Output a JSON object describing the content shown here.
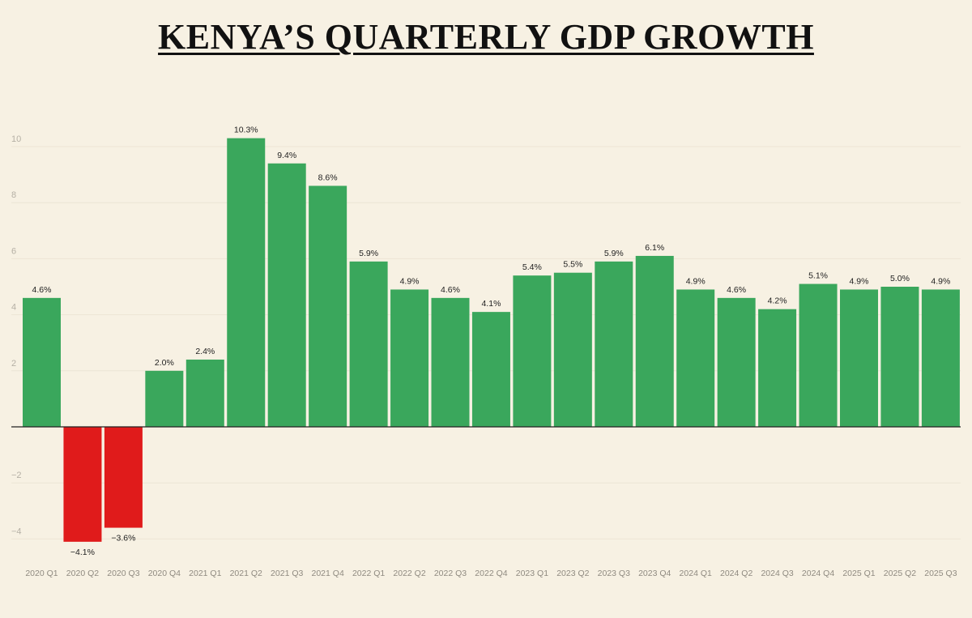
{
  "chart_data": {
    "type": "bar",
    "title": "KENYA’S QUARTERLY GDP GROWTH",
    "xlabel": "",
    "ylabel": "",
    "ylim": [
      -4.8,
      11
    ],
    "yticks": [
      -4,
      -2,
      2,
      4,
      6,
      8,
      10
    ],
    "ytick_labels": [
      "−4",
      "−2",
      "2",
      "4",
      "6",
      "8",
      "10"
    ],
    "grid": true,
    "categories": [
      "2020 Q1",
      "2020 Q2",
      "2020 Q3",
      "2020 Q4",
      "2021 Q1",
      "2021 Q2",
      "2021 Q3",
      "2021 Q4",
      "2022 Q1",
      "2022 Q2",
      "2022 Q3",
      "2022 Q4",
      "2023 Q1",
      "2023 Q2",
      "2023 Q3",
      "2023 Q4",
      "2024 Q1",
      "2024 Q2",
      "2024 Q3",
      "2024 Q4",
      "2025 Q1",
      "2025 Q2",
      "2025 Q3"
    ],
    "values": [
      4.6,
      -4.1,
      -3.6,
      2.0,
      2.4,
      10.3,
      9.4,
      8.6,
      5.9,
      4.9,
      4.6,
      4.1,
      5.4,
      5.5,
      5.9,
      6.1,
      4.9,
      4.6,
      4.2,
      5.1,
      4.9,
      5.0,
      4.9
    ],
    "data_labels": [
      "4.6%",
      "−4.1%",
      "−3.6%",
      "2.0%",
      "2.4%",
      "10.3%",
      "9.4%",
      "8.6%",
      "5.9%",
      "4.9%",
      "4.6%",
      "4.1%",
      "5.4%",
      "5.5%",
      "5.9%",
      "6.1%",
      "4.9%",
      "4.6%",
      "4.2%",
      "5.1%",
      "4.9%",
      "5.0%",
      "4.9%"
    ],
    "colors": {
      "positive": "#3aa75c",
      "negative": "#e01b1b",
      "background": "#f7f1e3"
    }
  }
}
